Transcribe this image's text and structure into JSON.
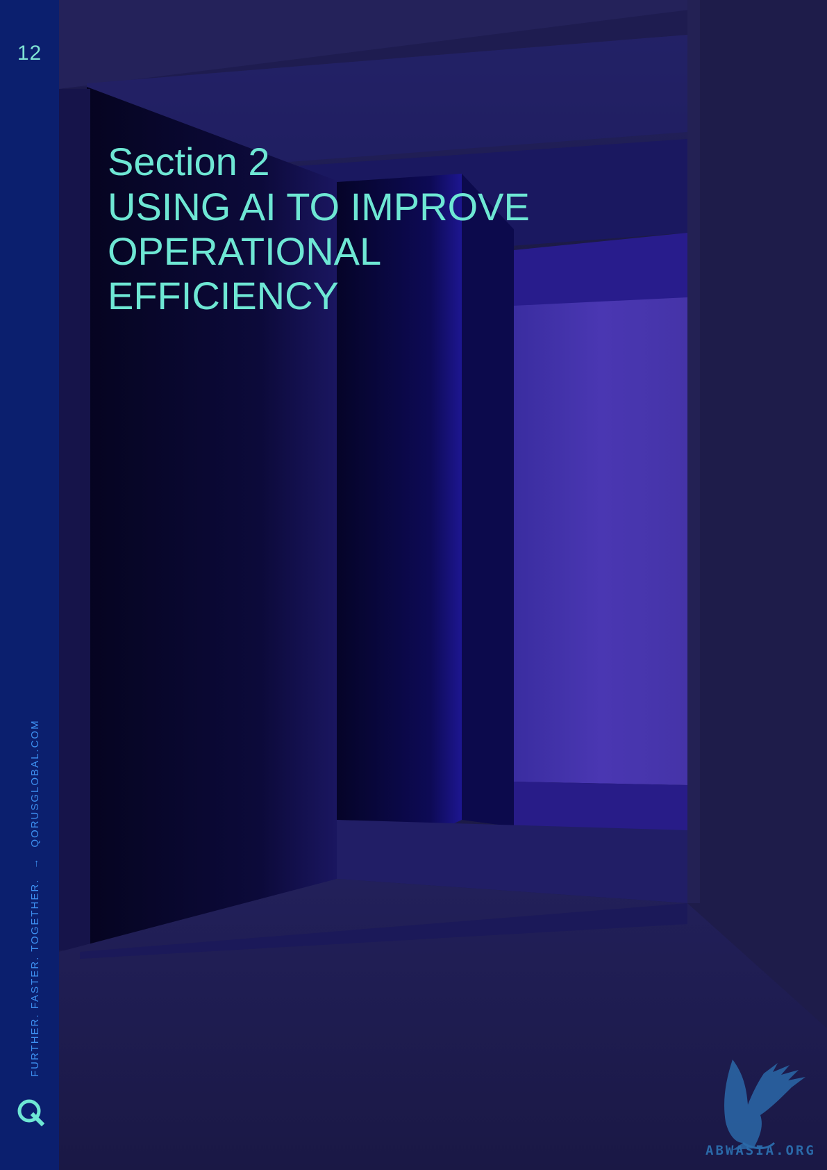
{
  "page": {
    "number": "12",
    "tagline": "FURTHER. FASTER. TOGETHER.",
    "arrow": "→",
    "website": "QORUSGLOBAL.COM",
    "logo_letter": "Q"
  },
  "section": {
    "label": "Section 2",
    "title_lines": [
      "USING AI TO IMPROVE",
      "OPERATIONAL",
      "EFFICIENCY"
    ]
  },
  "watermark": {
    "text": "ABWASIA.ORG"
  },
  "colors": {
    "accent": "#6ee7d4",
    "sidebar": "#0b1f6e",
    "tagline": "#3d8ff0",
    "background": "#1a1a45",
    "glow": "#4a38b0"
  }
}
